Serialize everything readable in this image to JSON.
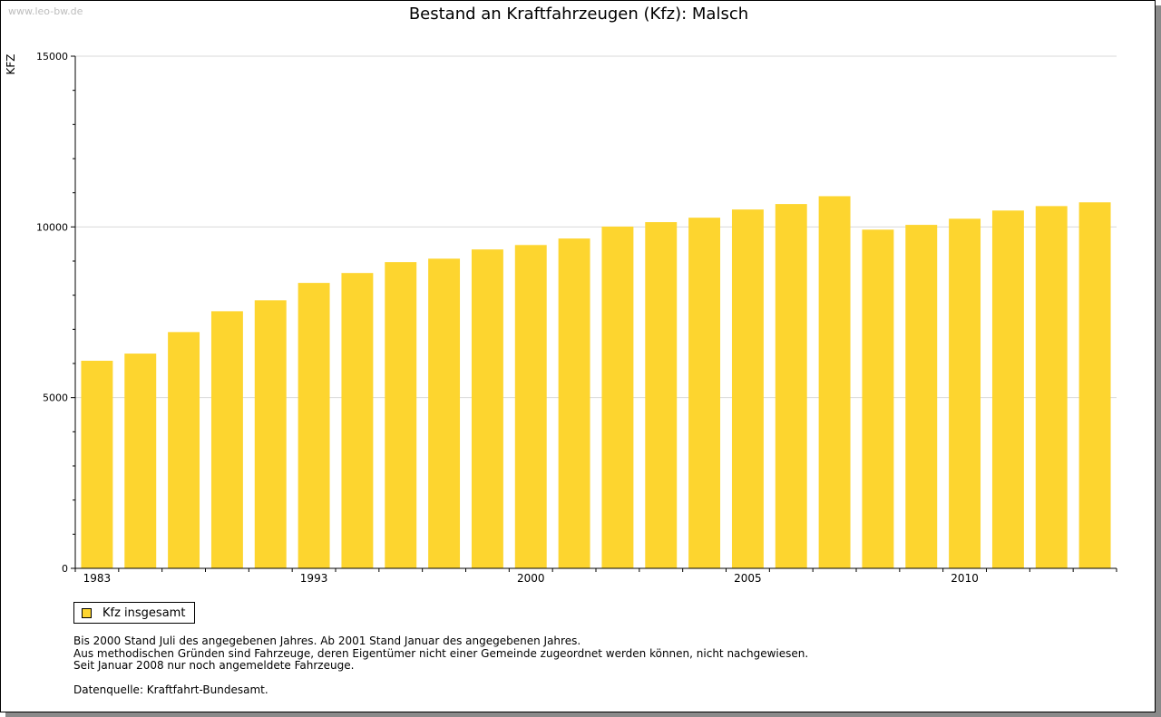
{
  "watermark": "www.leo-bw.de",
  "legend_label": "Kfz insgesamt",
  "notes": [
    "Bis 2000 Stand Juli des angegebenen Jahres. Ab 2001 Stand Januar des angegebenen Jahres.",
    "Aus methodischen Gründen sind Fahrzeuge, deren Eigentümer nicht einer Gemeinde zugeordnet werden können, nicht nachgewiesen.",
    "Seit Januar 2008 nur noch angemeldete Fahrzeuge."
  ],
  "source": "Datenquelle: Kraftfahrt-Bundesamt.",
  "colors": {
    "bar": "#FDD52F",
    "grid": "#d9d9d9",
    "axis": "#000000"
  },
  "chart_data": {
    "type": "bar",
    "title": "Bestand an Kraftfahrzeugen (Kfz): Malsch",
    "xlabel": "",
    "ylabel": "KFZ",
    "ylim": [
      0,
      15000
    ],
    "yticks": [
      0,
      5000,
      10000,
      15000
    ],
    "categories": [
      "1983",
      "",
      "",
      "",
      "",
      "1993",
      "",
      "",
      "",
      "",
      "2000",
      "",
      "",
      "",
      "",
      "2005",
      "",
      "",
      "",
      "",
      "2010",
      "",
      "",
      ""
    ],
    "series": [
      {
        "name": "Kfz insgesamt",
        "values": [
          6080,
          6290,
          6920,
          7530,
          7850,
          8360,
          8650,
          8970,
          9070,
          9340,
          9470,
          9660,
          10010,
          10140,
          10270,
          10510,
          10670,
          10900,
          9920,
          10060,
          10240,
          10480,
          10610,
          10720
        ]
      }
    ],
    "grid": true,
    "legend": "bottom-left"
  }
}
